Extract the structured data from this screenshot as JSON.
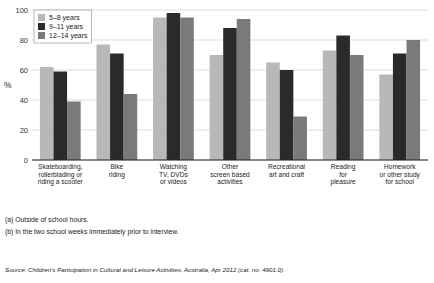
{
  "chart_data": {
    "type": "bar",
    "categories": [
      "Skateboarding,\nrollerblading or\nriding a scooter",
      "Bike\nriding",
      "Watching\nTV, DVDs\nor videos",
      "Other\nscreen based\nactivities",
      "Recreational\nart and craft",
      "Reading\nfor\npleasure",
      "Homework\nor other study\nfor school"
    ],
    "series": [
      {
        "name": "5–8 years",
        "color": "#b8b8b8",
        "values": [
          62,
          77,
          95,
          70,
          65,
          73,
          57
        ]
      },
      {
        "name": "9–11 years",
        "color": "#2a2a2a",
        "values": [
          59,
          71,
          98,
          88,
          60,
          83,
          71
        ]
      },
      {
        "name": "12–14 years",
        "color": "#7a7a7a",
        "values": [
          39,
          44,
          95,
          94,
          29,
          70,
          80
        ]
      }
    ],
    "y_label": "%",
    "ylim": [
      0,
      100
    ],
    "yticks": [
      0,
      20,
      40,
      60,
      80,
      100
    ],
    "grid": true,
    "legend": "upper left",
    "annotations": [
      "(a) Outside of school hours.",
      "(b) In the two school weeks immediately prior to interview.",
      "Source: Children’s Participation in Cultural and Leisure Activities, Australia, Apr 2012 (cat. no. 4901.0)."
    ]
  }
}
